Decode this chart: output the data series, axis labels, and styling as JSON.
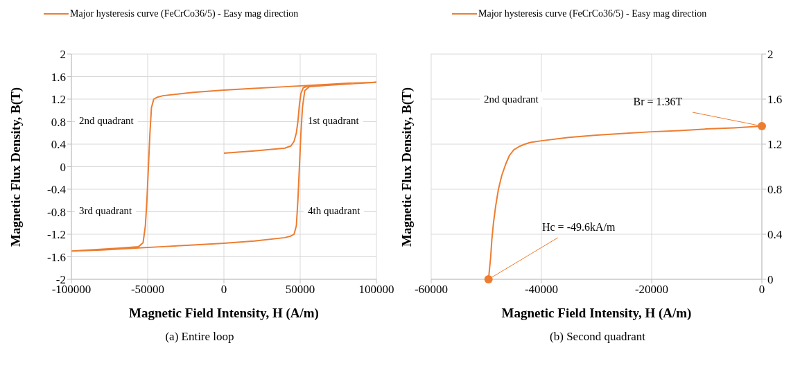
{
  "chart_data": [
    {
      "type": "line",
      "xlabel": "Magnetic Field Intensity, H (A/m)",
      "ylabel": "Magnetic Flux Density, B(T)",
      "xlim": [
        -100000,
        100000
      ],
      "xticks": [
        -100000,
        -50000,
        0,
        50000,
        100000
      ],
      "ylim": [
        -2,
        2
      ],
      "yticks": [
        -2,
        -1.6,
        -1.2,
        -0.8,
        -0.4,
        0,
        0.4,
        0.8,
        1.2,
        1.6,
        2
      ],
      "grid": true,
      "legend": "top",
      "marker": "none",
      "annotations": [
        "2nd quadrant",
        "1st quadrant",
        "3rd quadrant",
        "4th quadrant",
        "(a) Entire loop"
      ],
      "series": [
        {
          "name": "Major hysteresis curve (FeCrCo36/5) - Easy mag direction",
          "color": "#ed7d31",
          "x": [
            0,
            20000,
            40000,
            44000,
            46000,
            47500,
            48500,
            49500,
            50500,
            52000,
            55000,
            70000,
            100000,
            80000,
            60000,
            40000,
            20000,
            0,
            -20000,
            -40000,
            -44000,
            -46000,
            -47500,
            -48500,
            -49500,
            -50500,
            -51500,
            -53000,
            -56000,
            -70000,
            -100000,
            -80000,
            -60000,
            -40000,
            -20000,
            0,
            20000,
            40000,
            44000,
            46000,
            47500,
            48500,
            49500,
            50500,
            51500,
            53000,
            56000,
            70000,
            100000
          ],
          "values": [
            0.24,
            0.28,
            0.33,
            0.37,
            0.45,
            0.6,
            0.8,
            1.1,
            1.3,
            1.4,
            1.43,
            1.46,
            1.5,
            1.48,
            1.45,
            1.42,
            1.39,
            1.36,
            1.32,
            1.26,
            1.23,
            1.2,
            1.05,
            0.6,
            0,
            -0.6,
            -1.05,
            -1.35,
            -1.42,
            -1.45,
            -1.5,
            -1.48,
            -1.45,
            -1.42,
            -1.39,
            -1.36,
            -1.32,
            -1.26,
            -1.23,
            -1.2,
            -1.05,
            -0.6,
            0,
            0.6,
            1.05,
            1.35,
            1.42,
            1.45,
            1.5
          ]
        }
      ]
    },
    {
      "type": "line",
      "xlabel": "Magnetic Field Intensity, H (A/m)",
      "ylabel": "Magnetic Flux Density, B(T)",
      "xlim": [
        -60000,
        0
      ],
      "xticks": [
        -60000,
        -40000,
        -20000,
        0
      ],
      "ylim": [
        0,
        2
      ],
      "yticks": [
        0,
        0.4,
        0.8,
        1.2,
        1.6,
        2
      ],
      "grid": true,
      "legend": "top",
      "marker": "none",
      "annotations": [
        "2nd quadrant",
        {
          "text": "Br = 1.36T",
          "x": 0,
          "y": 1.36
        },
        {
          "text": "Hc = -49.6kA/m",
          "x": -49600,
          "y": 0
        },
        "(b) Second quadrant"
      ],
      "series": [
        {
          "name": "Major hysteresis curve (FeCrCo36/5) - Easy mag direction",
          "color": "#ed7d31",
          "x": [
            -49600,
            -49400,
            -49200,
            -49000,
            -48700,
            -48300,
            -47800,
            -47200,
            -46500,
            -45800,
            -45000,
            -44000,
            -43000,
            -42000,
            -40000,
            -35000,
            -30000,
            -25000,
            -20000,
            -15000,
            -10000,
            -5000,
            0
          ],
          "values": [
            0,
            0.1,
            0.2,
            0.35,
            0.5,
            0.65,
            0.8,
            0.92,
            1.02,
            1.1,
            1.15,
            1.18,
            1.2,
            1.215,
            1.23,
            1.26,
            1.28,
            1.295,
            1.31,
            1.32,
            1.335,
            1.345,
            1.36
          ]
        }
      ]
    }
  ]
}
